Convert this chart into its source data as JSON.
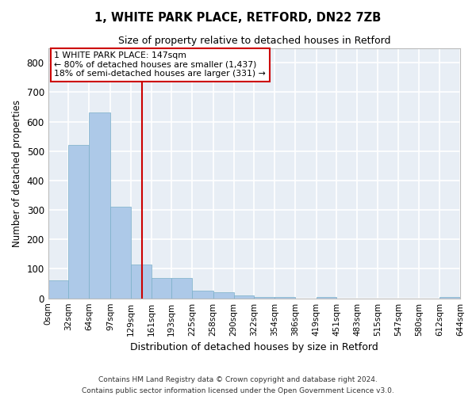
{
  "title_line1": "1, WHITE PARK PLACE, RETFORD, DN22 7ZB",
  "title_line2": "Size of property relative to detached houses in Retford",
  "xlabel": "Distribution of detached houses by size in Retford",
  "ylabel": "Number of detached properties",
  "footer_line1": "Contains HM Land Registry data © Crown copyright and database right 2024.",
  "footer_line2": "Contains public sector information licensed under the Open Government Licence v3.0.",
  "bin_edges": [
    0,
    32,
    64,
    97,
    129,
    161,
    193,
    225,
    258,
    290,
    322,
    354,
    386,
    419,
    451,
    483,
    515,
    547,
    580,
    612,
    644
  ],
  "bar_heights": [
    60,
    520,
    630,
    310,
    115,
    70,
    70,
    25,
    20,
    10,
    5,
    5,
    0,
    5,
    0,
    0,
    0,
    0,
    0,
    5
  ],
  "bar_color": "#adc9e8",
  "bar_edge_color": "#7aafc8",
  "bg_color": "#e8eef5",
  "grid_color": "#ffffff",
  "property_size": 147,
  "vline_color": "#cc0000",
  "annotation_text_line1": "1 WHITE PARK PLACE: 147sqm",
  "annotation_text_line2": "← 80% of detached houses are smaller (1,437)",
  "annotation_text_line3": "18% of semi-detached houses are larger (331) →",
  "annotation_box_color": "#ffffff",
  "annotation_box_edge": "#cc0000",
  "ylim": [
    0,
    850
  ],
  "yticks": [
    0,
    100,
    200,
    300,
    400,
    500,
    600,
    700,
    800
  ]
}
